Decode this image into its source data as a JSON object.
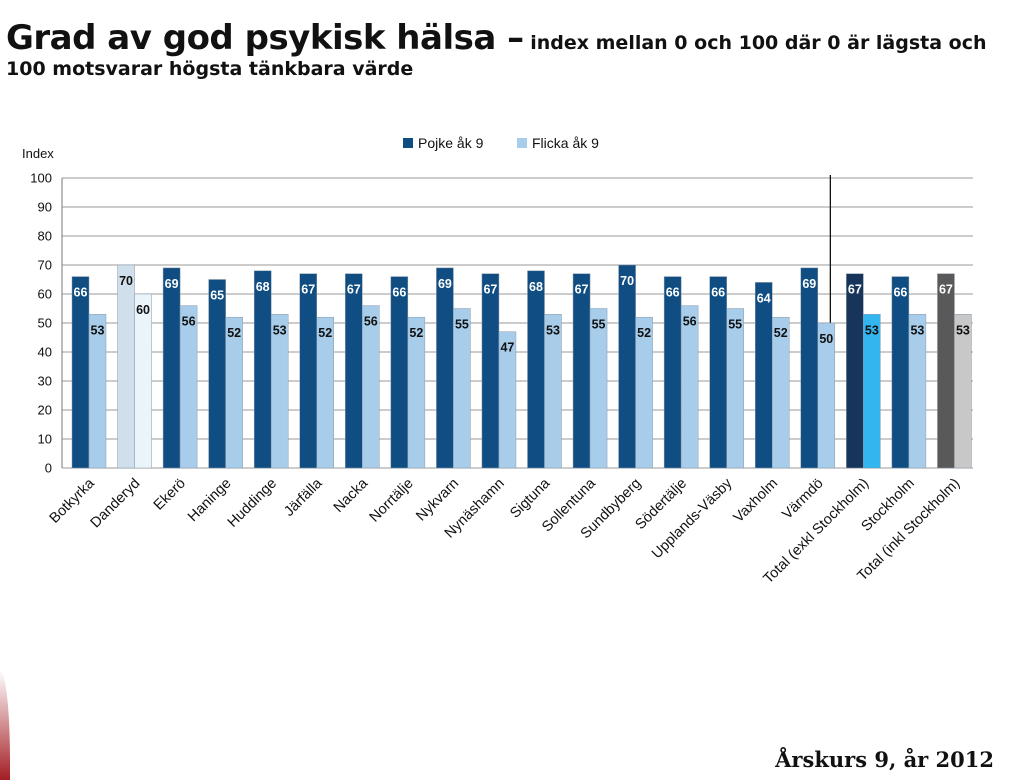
{
  "slide": {
    "title_main": "Grad av god psykisk hälsa –",
    "title_sub": " index mellan 0 och 100 där 0 är lägsta och 100 motsvarar högsta tänkbara värde",
    "footer": "Årskurs 9, år 2012"
  },
  "chart_data": {
    "type": "bar",
    "ylabel": "Index",
    "ylim": [
      0,
      100
    ],
    "yticks": [
      0,
      10,
      20,
      30,
      40,
      50,
      60,
      70,
      80,
      90,
      100
    ],
    "grid": true,
    "legend_position": "top-center",
    "categories": [
      "Botkyrka",
      "Danderyd",
      "Ekerö",
      "Haninge",
      "Huddinge",
      "Järfälla",
      "Nacka",
      "Norrtälje",
      "Nykvarn",
      "Nynäshamn",
      "Sigtuna",
      "Sollentuna",
      "Sundbyberg",
      "Södertälje",
      "Upplands-Väsby",
      "Vaxholm",
      "Värmdö",
      "Total (exkl Stockholm)",
      "Stockholm",
      "Total (inkl Stockholm)"
    ],
    "series": [
      {
        "name": "Pojke åk 9",
        "color": "#0f4d82",
        "values": [
          66,
          70,
          69,
          65,
          68,
          67,
          67,
          66,
          69,
          67,
          68,
          67,
          70,
          66,
          66,
          64,
          69,
          67,
          66,
          67
        ]
      },
      {
        "name": "Flicka åk 9",
        "color": "#a7cdeb",
        "values": [
          53,
          60,
          56,
          52,
          53,
          52,
          56,
          52,
          55,
          47,
          53,
          55,
          52,
          56,
          55,
          52,
          50,
          53,
          53,
          53
        ]
      }
    ],
    "highlight_colors": {
      "1": [
        "#cfe0ec",
        "#eaf4fb"
      ],
      "17": [
        "#17355a",
        "#33b5f0"
      ],
      "19": [
        "#595959",
        "#c8c8c8"
      ]
    },
    "highlight_label_colors": {
      "1": [
        "#111111",
        "#111111"
      ]
    },
    "separator_after_index": 16
  }
}
